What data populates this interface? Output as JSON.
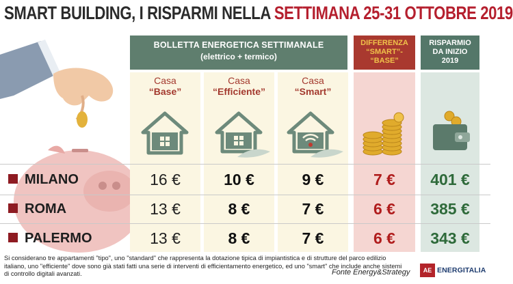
{
  "title": {
    "part1": "SMART BUILDING, I RISPARMI NELLA ",
    "part2": "SETTIMANA 25-31 OTTOBRE 2019"
  },
  "header": {
    "main_line1": "BOLLETTA ENERGETICA SETTIMANALE",
    "main_line2": "(elettrico + termico)",
    "diff_l1": "DIFFERENZA",
    "diff_l2": "“SMART”-",
    "diff_l3": "“BASE”",
    "risp_l1": "RISPARMIO",
    "risp_l2": "DA INIZIO",
    "risp_l3": "2019"
  },
  "columns": [
    {
      "l1": "Casa",
      "l2": "“Base”"
    },
    {
      "l1": "Casa",
      "l2": "“Efficiente”"
    },
    {
      "l1": "Casa",
      "l2": "“Smart”"
    }
  ],
  "rows": [
    {
      "city": "MILANO",
      "base": "16 €",
      "eff": "10 €",
      "smart": "9 €",
      "diff": "7 €",
      "risp": "401 €"
    },
    {
      "city": "ROMA",
      "base": "13 €",
      "eff": "8 €",
      "smart": "7 €",
      "diff": "6 €",
      "risp": "385 €"
    },
    {
      "city": "PALERMO",
      "base": "13 €",
      "eff": "8 €",
      "smart": "7 €",
      "diff": "6 €",
      "risp": "343 €"
    }
  ],
  "footnote": "Si considerano tre appartamenti \"tipo\", uno \"standard\" che rappresenta la dotazione tipica di impiantistica e di strutture del parco edilizio italiano, uno \"efficiente\" dove sono già stati fatti una serie di interventi di efficientamento energetico, ed uno \"smart\" che include anche sistemi di controllo digitali avanzati.",
  "source": "Fonte Energy&Strategy",
  "logo": {
    "mark": "AE",
    "text": "ENERGITALIA"
  },
  "colors": {
    "title_red": "#b51f2e",
    "green_header": "#5f7e6e",
    "diff_header": "#a9392f",
    "diff_text": "#f0c24a",
    "value_red": "#b01d1d",
    "value_green": "#2e6a3a"
  }
}
